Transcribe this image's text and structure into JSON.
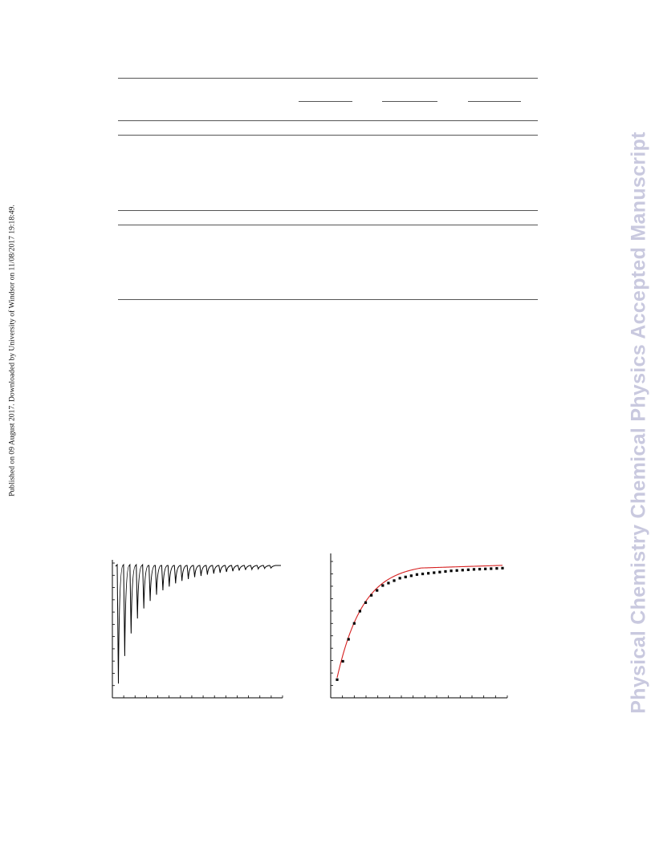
{
  "side_note": "Published on 09 August 2017. Downloaded by University of Windsor on 11/08/2017 19:18:49.",
  "watermark": "Physical Chemistry Chemical Physics Accepted Manuscript",
  "colors": {
    "fit_curve": "#d62020",
    "points": "#000000",
    "trace": "#000000",
    "rules": "#555555"
  },
  "chart_data": [
    {
      "type": "line",
      "description_of_series": "raw titration thermogram (spikes per injection)",
      "injections": 25,
      "spike_depths": [
        0.95,
        0.73,
        0.55,
        0.43,
        0.35,
        0.29,
        0.24,
        0.205,
        0.175,
        0.15,
        0.13,
        0.115,
        0.1,
        0.09,
        0.08,
        0.072,
        0.065,
        0.058,
        0.052,
        0.047,
        0.042,
        0.038,
        0.034,
        0.03,
        0.027
      ],
      "x_ticks": 16,
      "y_ticks": 12
    },
    {
      "type": "scatter",
      "description_of_series": "integrated heats with fitted binding curve",
      "x": [
        1,
        2,
        3,
        4,
        5,
        6,
        7,
        8,
        9,
        10,
        11,
        12,
        13,
        14,
        15,
        16,
        17,
        18,
        19,
        20,
        21,
        22,
        23,
        24,
        25,
        26,
        27,
        28,
        29,
        30
      ],
      "y": [
        0.07,
        0.22,
        0.4,
        0.53,
        0.63,
        0.7,
        0.76,
        0.8,
        0.84,
        0.86,
        0.88,
        0.9,
        0.91,
        0.92,
        0.93,
        0.935,
        0.94,
        0.945,
        0.95,
        0.955,
        0.96,
        0.963,
        0.966,
        0.969,
        0.972,
        0.974,
        0.976,
        0.978,
        0.98,
        0.982
      ],
      "fit": {
        "model": "one-site",
        "k": 0.22,
        "max": 1.02
      },
      "x_ticks": 16,
      "y_ticks": 12
    }
  ]
}
